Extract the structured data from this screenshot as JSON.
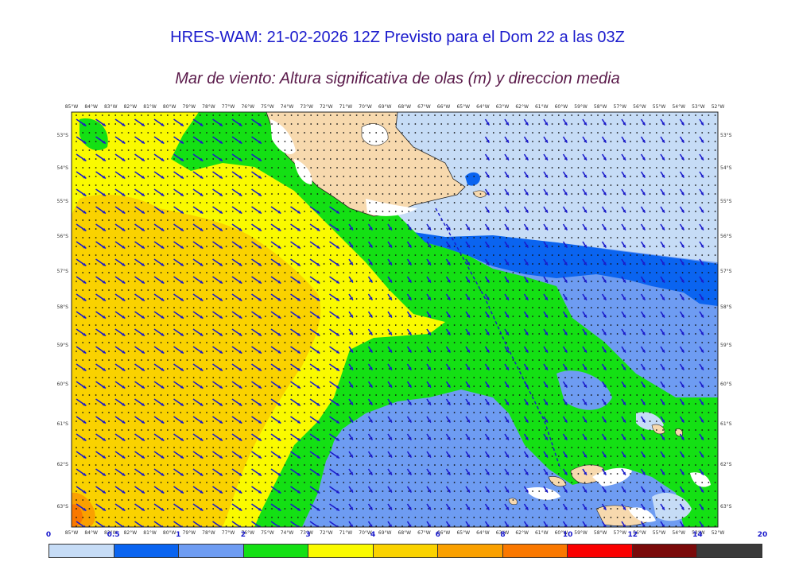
{
  "header": {
    "title": "HRES-WAM: 21-02-2026 12Z Previsto para el Dom 22 a las 03Z",
    "subtitle": "Mar de viento: Altura significativa de olas (m) y direccion media"
  },
  "lon_labels": [
    "85°W",
    "84°W",
    "83°W",
    "82°W",
    "81°W",
    "80°W",
    "79°W",
    "78°W",
    "77°W",
    "76°W",
    "75°W",
    "74°W",
    "73°W",
    "72°W",
    "71°W",
    "70°W",
    "69°W",
    "68°W",
    "67°W",
    "66°W",
    "65°W",
    "64°W",
    "63°W",
    "62°W",
    "61°W",
    "60°W",
    "59°W",
    "58°W",
    "57°W",
    "56°W",
    "55°W",
    "54°W",
    "53°W",
    "52°W"
  ],
  "lat_labels": [
    "53°S",
    "54°S",
    "55°S",
    "56°S",
    "57°S",
    "58°S",
    "59°S",
    "60°S",
    "61°S",
    "62°S",
    "63°S"
  ],
  "legend": {
    "levels": [
      "0",
      "0.5",
      "1",
      "2",
      "3",
      "4",
      "6",
      "8",
      "10",
      "12",
      "14",
      "20"
    ],
    "colors": [
      "#c6dcf6",
      "#0a64f0",
      "#6e9cf2",
      "#14e014",
      "#fafa00",
      "#fad200",
      "#faa000",
      "#fa7800",
      "#fa0000",
      "#7a0a0a",
      "#3a3a3a"
    ]
  },
  "colors": {
    "land": "#f7d9ae",
    "arrow": "#1a1acc",
    "grid_dots": "#111111",
    "track": "#1a1acc"
  }
}
